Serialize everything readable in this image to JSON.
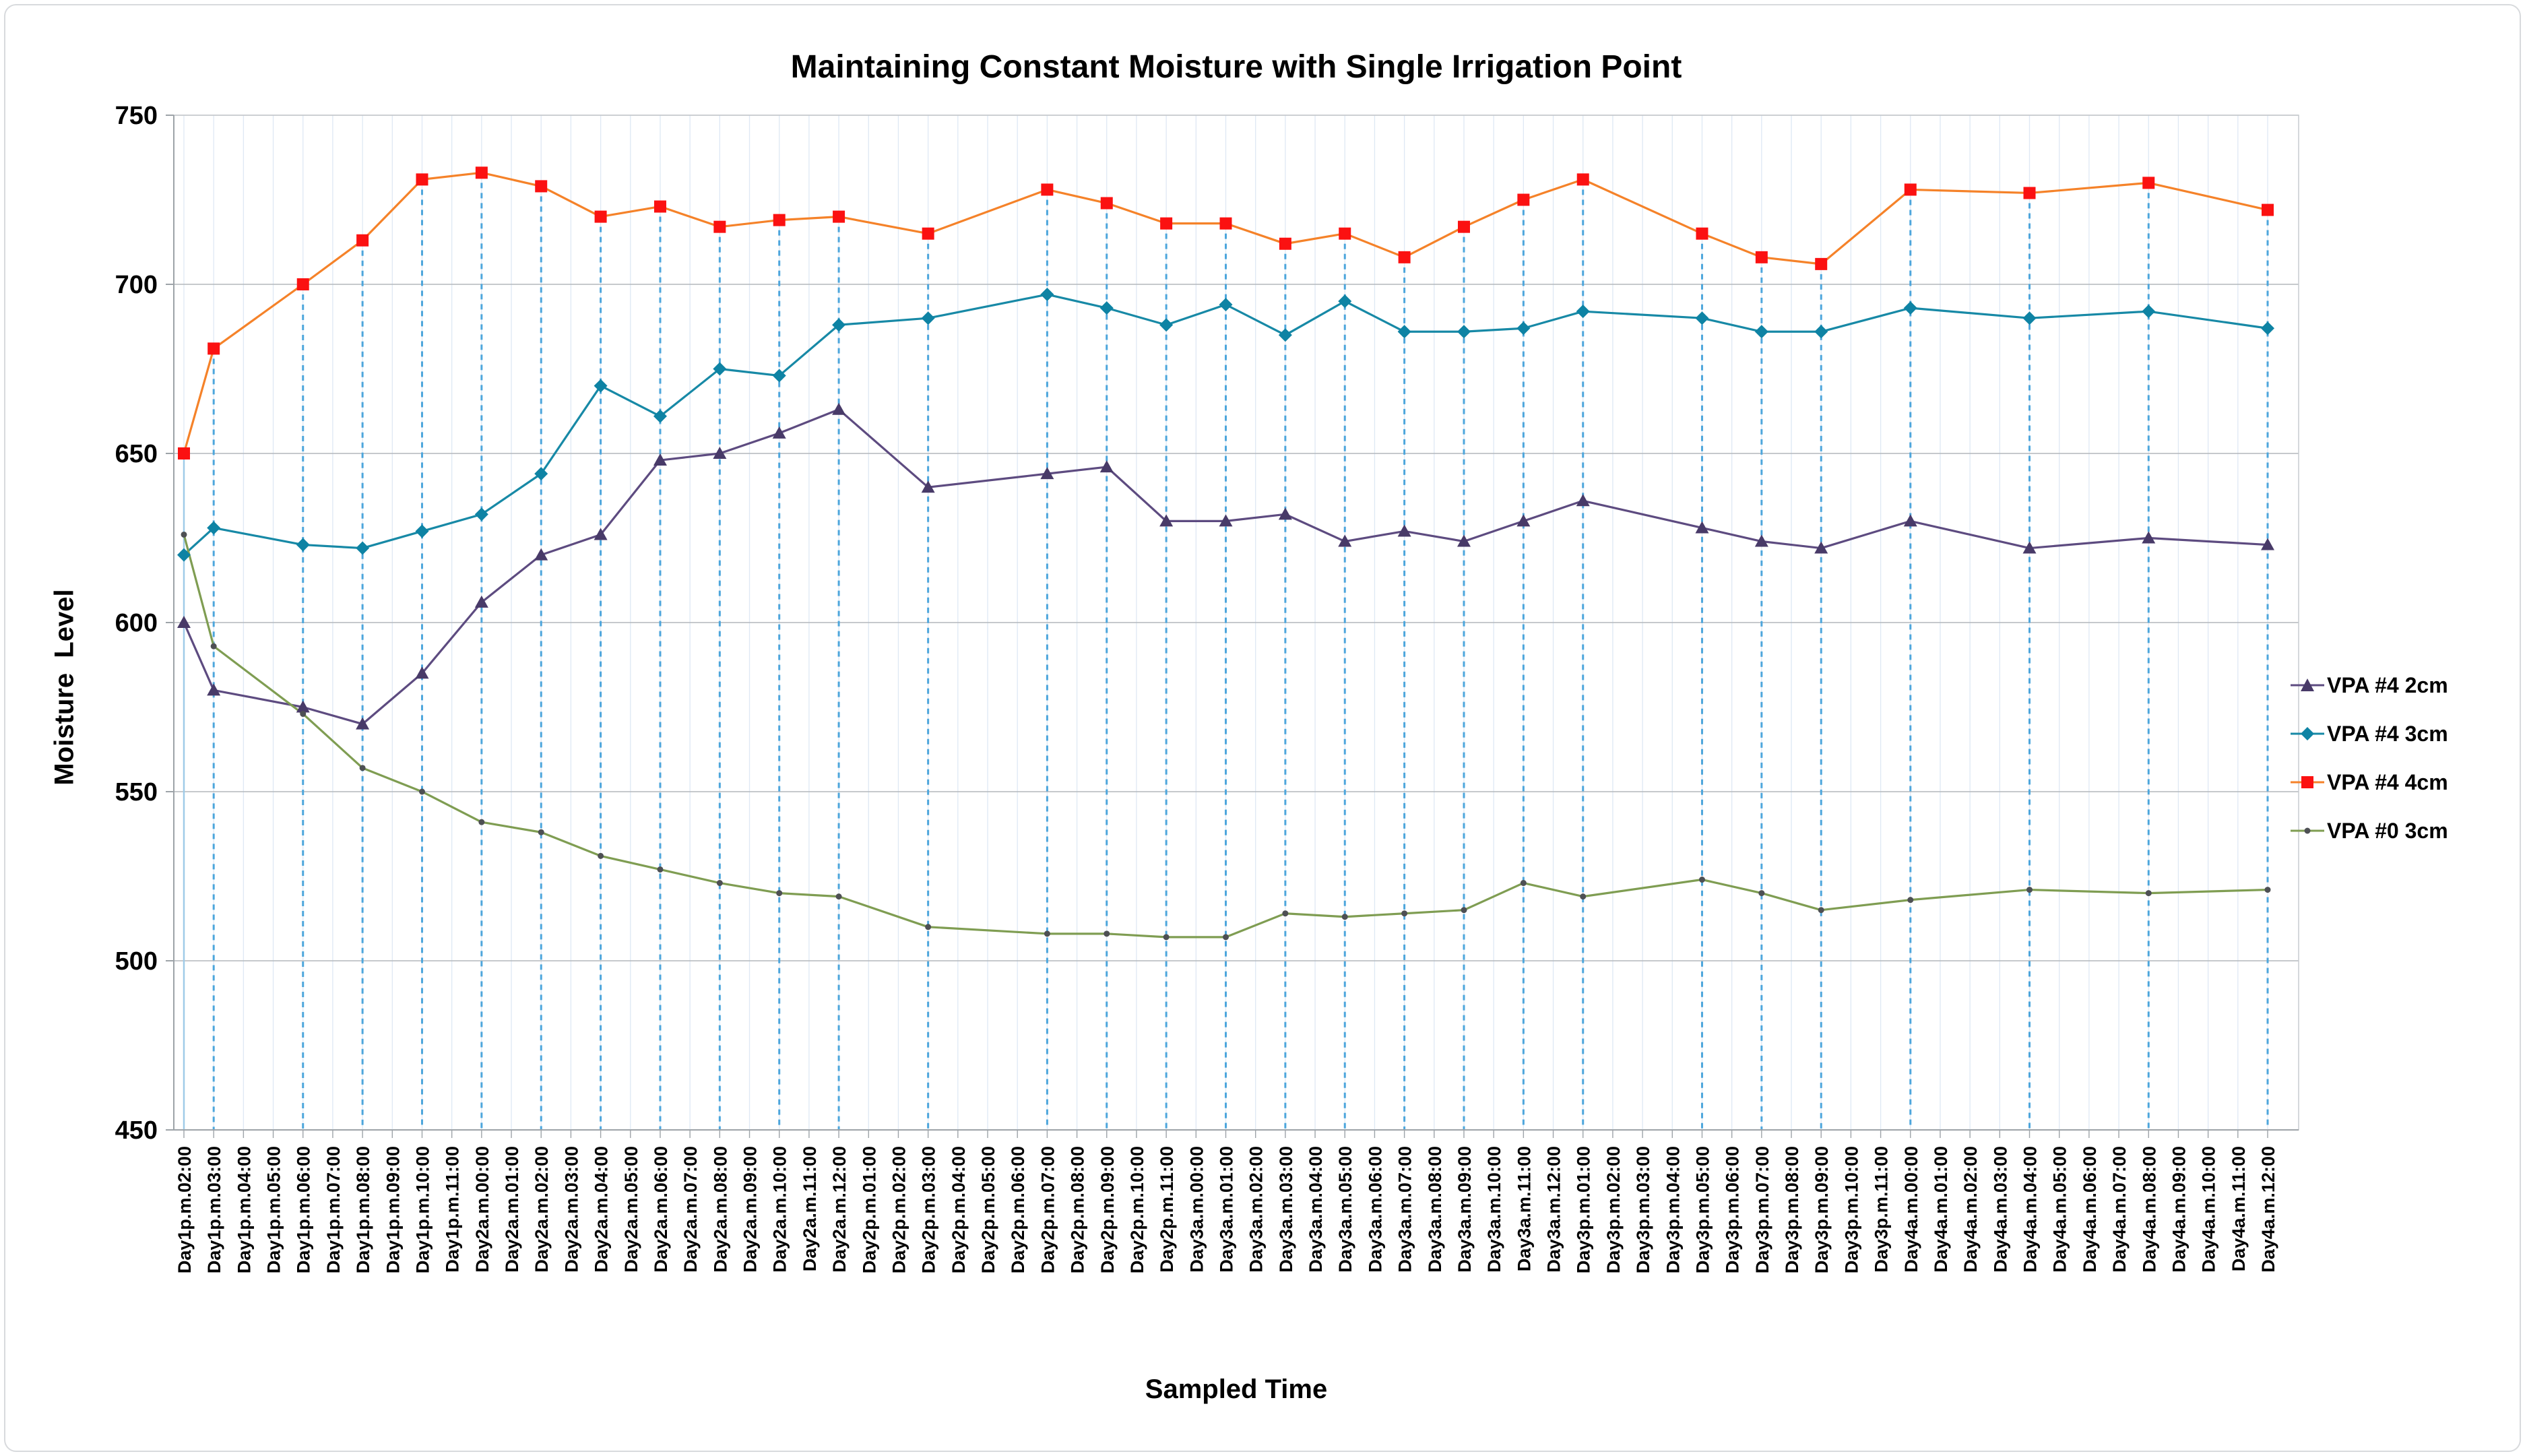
{
  "chart_data": {
    "type": "line",
    "title": "Maintaining Constant Moisture with Single Irrigation Point",
    "xlabel": "Sampled Time",
    "ylabel": "Moisture  Level",
    "ylim": [
      450,
      750
    ],
    "yticks": [
      450,
      500,
      550,
      600,
      650,
      700,
      750
    ],
    "grid": true,
    "legend_position": "right",
    "categories": [
      "Day1p.m.02:00",
      "Day1p.m.03:00",
      "Day1p.m.04:00",
      "Day1p.m.05:00",
      "Day1p.m.06:00",
      "Day1p.m.07:00",
      "Day1p.m.08:00",
      "Day1p.m.09:00",
      "Day1p.m.10:00",
      "Day1p.m.11:00",
      "Day2a.m.00:00",
      "Day2a.m.01:00",
      "Day2a.m.02:00",
      "Day2a.m.03:00",
      "Day2a.m.04:00",
      "Day2a.m.05:00",
      "Day2a.m.06:00",
      "Day2a.m.07:00",
      "Day2a.m.08:00",
      "Day2a.m.09:00",
      "Day2a.m.10:00",
      "Day2a.m.11:00",
      "Day2a.m.12:00",
      "Day2p.m.01:00",
      "Day2p.m.02:00",
      "Day2p.m.03:00",
      "Day2p.m.04:00",
      "Day2p.m.05:00",
      "Day2p.m.06:00",
      "Day2p.m.07:00",
      "Day2p.m.08:00",
      "Day2p.m.09:00",
      "Day2p.m.10:00",
      "Day2p.m.11:00",
      "Day3a.m.00:00",
      "Day3a.m.01:00",
      "Day3a.m.02:00",
      "Day3a.m.03:00",
      "Day3a.m.04:00",
      "Day3a.m.05:00",
      "Day3a.m.06:00",
      "Day3a.m.07:00",
      "Day3a.m.08:00",
      "Day3a.m.09:00",
      "Day3a.m.10:00",
      "Day3a.m.11:00",
      "Day3a.m.12:00",
      "Day3p.m.01:00",
      "Day3p.m.02:00",
      "Day3p.m.03:00",
      "Day3p.m.04:00",
      "Day3p.m.05:00",
      "Day3p.m.06:00",
      "Day3p.m.07:00",
      "Day3p.m.08:00",
      "Day3p.m.09:00",
      "Day3p.m.10:00",
      "Day3p.m.11:00",
      "Day4a.m.00:00",
      "Day4a.m.01:00",
      "Day4a.m.02:00",
      "Day4a.m.03:00",
      "Day4a.m.04:00",
      "Day4a.m.05:00",
      "Day4a.m.06:00",
      "Day4a.m.07:00",
      "Day4a.m.08:00",
      "Day4a.m.09:00",
      "Day4a.m.10:00",
      "Day4a.m.11:00",
      "Day4a.m.12:00"
    ],
    "sample_indices": [
      0,
      1,
      4,
      6,
      8,
      10,
      12,
      14,
      16,
      18,
      20,
      22,
      25,
      29,
      31,
      33,
      35,
      37,
      39,
      41,
      43,
      45,
      47,
      51,
      53,
      55,
      58,
      62,
      66,
      70
    ],
    "series": [
      {
        "name": "VPA #4 2cm",
        "line_color": "#5D4B80",
        "marker": "triangle",
        "marker_color": "#483A68",
        "values": [
          600,
          580,
          575,
          570,
          585,
          606,
          620,
          626,
          648,
          650,
          656,
          663,
          640,
          644,
          646,
          630,
          630,
          632,
          624,
          627,
          624,
          630,
          636,
          628,
          624,
          622,
          630,
          622,
          625,
          623
        ]
      },
      {
        "name": "VPA #4 3cm",
        "line_color": "#1789A6",
        "marker": "diamond",
        "marker_color": "#0E83A4",
        "values": [
          620,
          628,
          623,
          622,
          627,
          632,
          644,
          670,
          661,
          675,
          673,
          688,
          690,
          697,
          693,
          688,
          694,
          685,
          695,
          686,
          686,
          687,
          692,
          690,
          686,
          686,
          693,
          690,
          692,
          687
        ]
      },
      {
        "name": "VPA #4 4cm",
        "line_color": "#F58229",
        "marker": "square",
        "marker_color": "#FB1111",
        "values": [
          650,
          681,
          700,
          713,
          731,
          733,
          729,
          720,
          723,
          717,
          719,
          720,
          715,
          728,
          724,
          718,
          718,
          712,
          715,
          708,
          717,
          725,
          731,
          715,
          708,
          706,
          728,
          727,
          730,
          722
        ]
      },
      {
        "name": "VPA #0 3cm",
        "line_color": "#7F9D52",
        "marker": "dot",
        "marker_color": "#4E5054",
        "values": [
          626,
          593,
          573,
          557,
          550,
          541,
          538,
          531,
          527,
          523,
          520,
          519,
          510,
          508,
          508,
          507,
          507,
          514,
          513,
          514,
          515,
          523,
          519,
          524,
          520,
          515,
          518,
          521,
          520,
          521
        ]
      }
    ],
    "colors": {
      "drop_line": "#4DA6DC",
      "first_drop_line": "#9FCBE8",
      "category_gridline": "#DEE8F4",
      "major_gridline": "#B3B7BC",
      "axis": "#9DA3A8"
    }
  }
}
